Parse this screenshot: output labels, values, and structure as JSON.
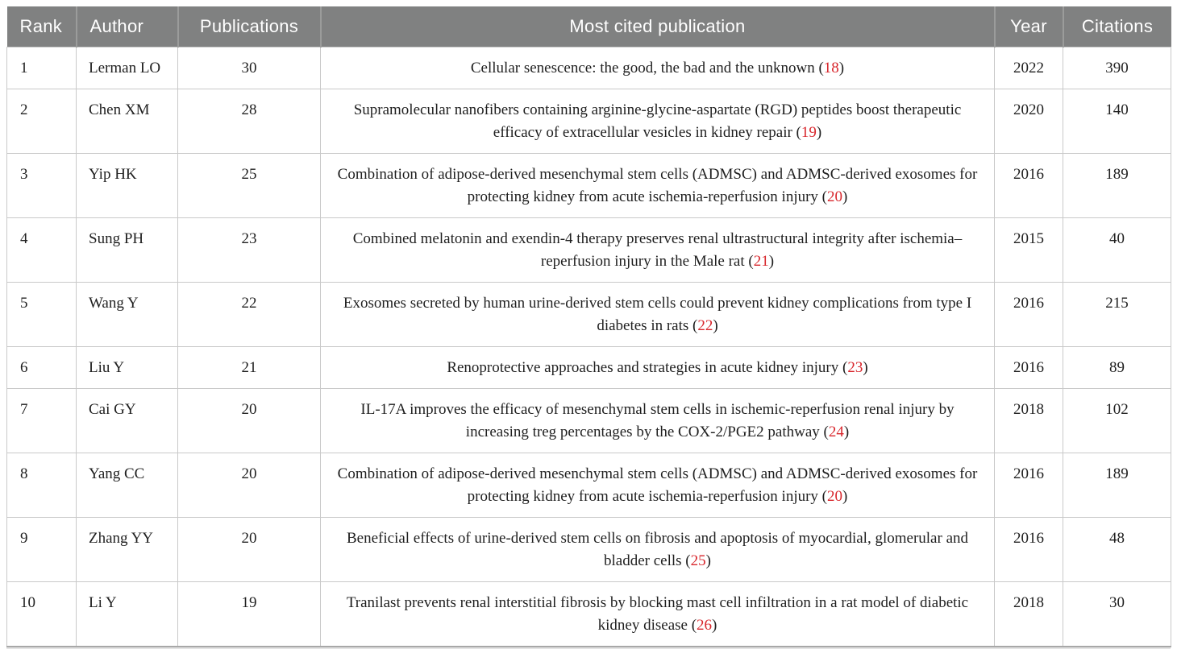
{
  "colors": {
    "header_bg": "#808181",
    "header_text": "#ffffff",
    "body_text": "#1f1f1f",
    "grid_line": "#c9c9c9",
    "ref_red": "#d8262c"
  },
  "table": {
    "columns": [
      {
        "key": "rank",
        "label": "Rank"
      },
      {
        "key": "author",
        "label": "Author"
      },
      {
        "key": "pubs",
        "label": "Publications"
      },
      {
        "key": "title",
        "label": "Most cited publication"
      },
      {
        "key": "year",
        "label": "Year"
      },
      {
        "key": "citations",
        "label": "Citations"
      }
    ],
    "rows": [
      {
        "rank": "1",
        "author": "Lerman LO",
        "publications": "30",
        "title": "Cellular senescence: the good, the bad and the unknown",
        "ref": "18",
        "year": "2022",
        "citations": "390"
      },
      {
        "rank": "2",
        "author": "Chen XM",
        "publications": "28",
        "title": "Supramolecular nanofibers containing arginine-glycine-aspartate (RGD) peptides boost therapeutic efficacy of extracellular vesicles in kidney repair",
        "ref": "19",
        "year": "2020",
        "citations": "140"
      },
      {
        "rank": "3",
        "author": "Yip HK",
        "publications": "25",
        "title": "Combination of adipose-derived mesenchymal stem cells (ADMSC) and ADMSC-derived exosomes for protecting kidney from acute ischemia-reperfusion injury",
        "ref": "20",
        "year": "2016",
        "citations": "189"
      },
      {
        "rank": "4",
        "author": "Sung PH",
        "publications": "23",
        "title": "Combined melatonin and exendin-4 therapy preserves renal ultrastructural integrity after ischemia–reperfusion injury in the Male rat",
        "ref": "21",
        "year": "2015",
        "citations": "40"
      },
      {
        "rank": "5",
        "author": "Wang Y",
        "publications": "22",
        "title": "Exosomes secreted by human urine-derived stem cells could prevent kidney complications from type I diabetes in rats",
        "ref": "22",
        "year": "2016",
        "citations": "215"
      },
      {
        "rank": "6",
        "author": "Liu Y",
        "publications": "21",
        "title": "Renoprotective approaches and strategies in acute kidney injury",
        "ref": "23",
        "year": "2016",
        "citations": "89"
      },
      {
        "rank": "7",
        "author": "Cai GY",
        "publications": "20",
        "title": "IL-17A improves the efficacy of mesenchymal stem cells in ischemic-reperfusion renal injury by increasing treg percentages by the COX-2/PGE2 pathway",
        "ref": "24",
        "year": "2018",
        "citations": "102"
      },
      {
        "rank": "8",
        "author": "Yang CC",
        "publications": "20",
        "title": "Combination of adipose-derived mesenchymal stem cells (ADMSC) and ADMSC-derived exosomes for protecting kidney from acute ischemia-reperfusion injury",
        "ref": "20",
        "year": "2016",
        "citations": "189"
      },
      {
        "rank": "9",
        "author": "Zhang YY",
        "publications": "20",
        "title": "Beneficial effects of urine-derived stem cells on fibrosis and apoptosis of myocardial, glomerular and bladder cells",
        "ref": "25",
        "year": "2016",
        "citations": "48"
      },
      {
        "rank": "10",
        "author": "Li Y",
        "publications": "19",
        "title": "Tranilast prevents renal interstitial fibrosis by blocking mast cell infiltration in a rat model of diabetic kidney disease",
        "ref": "26",
        "year": "2018",
        "citations": "30"
      }
    ]
  }
}
